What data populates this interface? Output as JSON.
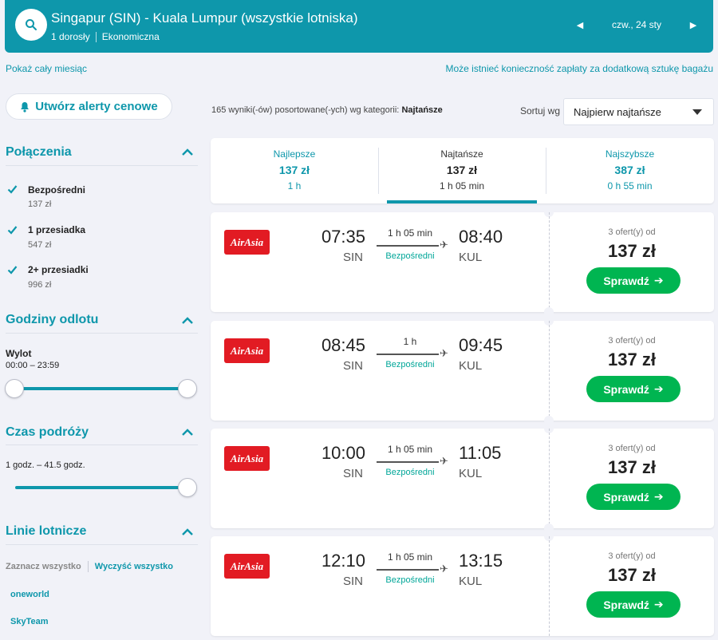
{
  "header": {
    "route": "Singapur (SIN) - Kuala Lumpur (wszystkie lotniska)",
    "passengers": "1 dorosły",
    "cabin": "Ekonomiczna",
    "date": "czw., 24 sty"
  },
  "links": {
    "month": "Pokaż cały miesiąc",
    "baggage": "Może istnieć konieczność zapłaty za dodatkową sztukę bagażu"
  },
  "alert_button": "Utwórz alerty cenowe",
  "filters": {
    "connections": {
      "title": "Połączenia",
      "items": [
        {
          "label": "Bezpośredni",
          "price": "137 zł",
          "checked": true
        },
        {
          "label": "1 przesiadka",
          "price": "547 zł",
          "checked": true
        },
        {
          "label": "2+ przesiadki",
          "price": "996 zł",
          "checked": true
        }
      ]
    },
    "departure": {
      "title": "Godziny odlotu",
      "label": "Wylot",
      "range": "00:00 – 23:59"
    },
    "duration": {
      "title": "Czas podróży",
      "range": "1 godz. – 41.5 godz."
    },
    "airlines": {
      "title": "Linie lotnicze",
      "select_all": "Zaznacz wszystko",
      "clear_all": "Wyczyść wszystko",
      "alliances": [
        "oneworld",
        "SkyTeam"
      ]
    }
  },
  "results": {
    "count_text": "165 wyniki(-ów) posortowane(-ych) wg kategorii:",
    "sort_category": "Najtańsze",
    "sort_label": "Sortuj wg",
    "sort_value": "Najpierw najtańsze"
  },
  "tabs": [
    {
      "label": "Najlepsze",
      "price": "137 zł",
      "duration": "1 h"
    },
    {
      "label": "Najtańsze",
      "price": "137 zł",
      "duration": "1 h 05 min"
    },
    {
      "label": "Najszybsze",
      "price": "387 zł",
      "duration": "0 h 55 min"
    }
  ],
  "flights": [
    {
      "airline": "AirAsia",
      "dep_time": "07:35",
      "dep_code": "SIN",
      "duration": "1 h 05 min",
      "stops": "Bezpośredni",
      "arr_time": "08:40",
      "arr_code": "KUL",
      "offers": "3 ofert(y) od",
      "price": "137 zł",
      "cta": "Sprawdź"
    },
    {
      "airline": "AirAsia",
      "dep_time": "08:45",
      "dep_code": "SIN",
      "duration": "1 h",
      "stops": "Bezpośredni",
      "arr_time": "09:45",
      "arr_code": "KUL",
      "offers": "3 ofert(y) od",
      "price": "137 zł",
      "cta": "Sprawdź"
    },
    {
      "airline": "AirAsia",
      "dep_time": "10:00",
      "dep_code": "SIN",
      "duration": "1 h 05 min",
      "stops": "Bezpośredni",
      "arr_time": "11:05",
      "arr_code": "KUL",
      "offers": "3 ofert(y) od",
      "price": "137 zł",
      "cta": "Sprawdź"
    },
    {
      "airline": "AirAsia",
      "dep_time": "12:10",
      "dep_code": "SIN",
      "duration": "1 h 05 min",
      "stops": "Bezpośredni",
      "arr_time": "13:15",
      "arr_code": "KUL",
      "offers": "3 ofert(y) od",
      "price": "137 zł",
      "cta": "Sprawdź"
    }
  ],
  "colors": {
    "brand": "#0e97ab",
    "cta": "#00b551",
    "direct": "#00a698",
    "airline_logo": "#e21b23",
    "background": "#f1f2f8"
  }
}
